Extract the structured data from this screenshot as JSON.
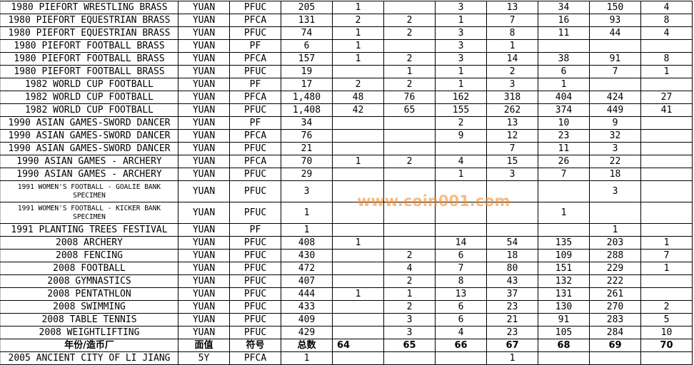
{
  "table": {
    "rows": [
      [
        "1980 PIEFORT WRESTLING BRASS",
        "YUAN",
        "PFUC",
        "205",
        "1",
        "",
        "3",
        "13",
        "34",
        "150",
        "4"
      ],
      [
        "1980 PIEFORT EQUESTRIAN BRASS",
        "YUAN",
        "PFCA",
        "131",
        "2",
        "2",
        "1",
        "7",
        "16",
        "93",
        "8"
      ],
      [
        "1980 PIEFORT EQUESTRIAN BRASS",
        "YUAN",
        "PFUC",
        "74",
        "1",
        "2",
        "3",
        "8",
        "11",
        "44",
        "4"
      ],
      [
        "1980 PIEFORT FOOTBALL BRASS",
        "YUAN",
        "PF",
        "6",
        "1",
        "",
        "3",
        "1",
        "",
        "",
        ""
      ],
      [
        "1980 PIEFORT FOOTBALL BRASS",
        "YUAN",
        "PFCA",
        "157",
        "1",
        "2",
        "3",
        "14",
        "38",
        "91",
        "8"
      ],
      [
        "1980 PIEFORT FOOTBALL BRASS",
        "YUAN",
        "PFUC",
        "19",
        "",
        "1",
        "1",
        "2",
        "6",
        "7",
        "1"
      ],
      [
        "1982 WORLD CUP FOOTBALL",
        "YUAN",
        "PF",
        "17",
        "2",
        "2",
        "1",
        "3",
        "1",
        "",
        ""
      ],
      [
        "1982 WORLD CUP FOOTBALL",
        "YUAN",
        "PFCA",
        "1,480",
        "48",
        "76",
        "162",
        "318",
        "404",
        "424",
        "27"
      ],
      [
        "1982 WORLD CUP FOOTBALL",
        "YUAN",
        "PFUC",
        "1,408",
        "42",
        "65",
        "155",
        "262",
        "374",
        "449",
        "41"
      ],
      [
        "1990 ASIAN GAMES-SWORD DANCER",
        "YUAN",
        "PF",
        "34",
        "",
        "",
        "2",
        "13",
        "10",
        "9",
        ""
      ],
      [
        "1990 ASIAN GAMES-SWORD DANCER",
        "YUAN",
        "PFCA",
        "76",
        "",
        "",
        "9",
        "12",
        "23",
        "32",
        ""
      ],
      [
        "1990 ASIAN GAMES-SWORD DANCER",
        "YUAN",
        "PFUC",
        "21",
        "",
        "",
        "",
        "7",
        "11",
        "3",
        ""
      ],
      [
        "1990 ASIAN GAMES - ARCHERY",
        "YUAN",
        "PFCA",
        "70",
        "1",
        "2",
        "4",
        "15",
        "26",
        "22",
        ""
      ],
      [
        "1990 ASIAN GAMES - ARCHERY",
        "YUAN",
        "PFUC",
        "29",
        "",
        "",
        "1",
        "3",
        "7",
        "18",
        ""
      ],
      [
        "1991 WOMEN'S FOOTBALL - GOALIE BANK SPECIMEN",
        "YUAN",
        "PFUC",
        "3",
        "",
        "",
        "",
        "",
        "",
        "3",
        ""
      ],
      [
        "1991 WOMEN'S FOOTBALL - KICKER BANK SPECIMEN",
        "YUAN",
        "PFUC",
        "1",
        "",
        "",
        "",
        "",
        "1",
        "",
        ""
      ],
      [
        "1991 PLANTING TREES FESTIVAL",
        "YUAN",
        "PF",
        "1",
        "",
        "",
        "",
        "",
        "",
        "1",
        ""
      ],
      [
        "2008 ARCHERY",
        "YUAN",
        "PFUC",
        "408",
        "1",
        "",
        "14",
        "54",
        "135",
        "203",
        "1"
      ],
      [
        "2008 FENCING",
        "YUAN",
        "PFUC",
        "430",
        "",
        "2",
        "6",
        "18",
        "109",
        "288",
        "7"
      ],
      [
        "2008 FOOTBALL",
        "YUAN",
        "PFUC",
        "472",
        "",
        "4",
        "7",
        "80",
        "151",
        "229",
        "1"
      ],
      [
        "2008 GYMNASTICS",
        "YUAN",
        "PFUC",
        "407",
        "",
        "2",
        "8",
        "43",
        "132",
        "222",
        ""
      ],
      [
        "2008 PENTATHLON",
        "YUAN",
        "PFUC",
        "444",
        "1",
        "1",
        "13",
        "37",
        "131",
        "261",
        ""
      ],
      [
        "2008 SWIMMING",
        "YUAN",
        "PFUC",
        "433",
        "",
        "2",
        "6",
        "23",
        "130",
        "270",
        "2"
      ],
      [
        "2008 TABLE TENNIS",
        "YUAN",
        "PFUC",
        "409",
        "",
        "3",
        "6",
        "21",
        "91",
        "283",
        "5"
      ],
      [
        "2008 WEIGHTLIFTING",
        "YUAN",
        "PFUC",
        "429",
        "",
        "3",
        "4",
        "23",
        "105",
        "284",
        "10"
      ],
      [
        "年份/造币厂",
        "面值",
        "符号",
        "总数",
        "64",
        "65",
        "66",
        "67",
        "68",
        "69",
        "70"
      ],
      [
        "2005 ANCIENT CITY OF LI JIANG",
        "5Y",
        "PFCA",
        "1",
        "",
        "",
        "",
        "1",
        "",
        "",
        ""
      ]
    ],
    "header_row_index": 25,
    "tall_row_indices": [
      14,
      15
    ]
  },
  "watermark": "www.coin001.com",
  "colors": {
    "watermark": "#f58c28",
    "grid": "#000000"
  }
}
